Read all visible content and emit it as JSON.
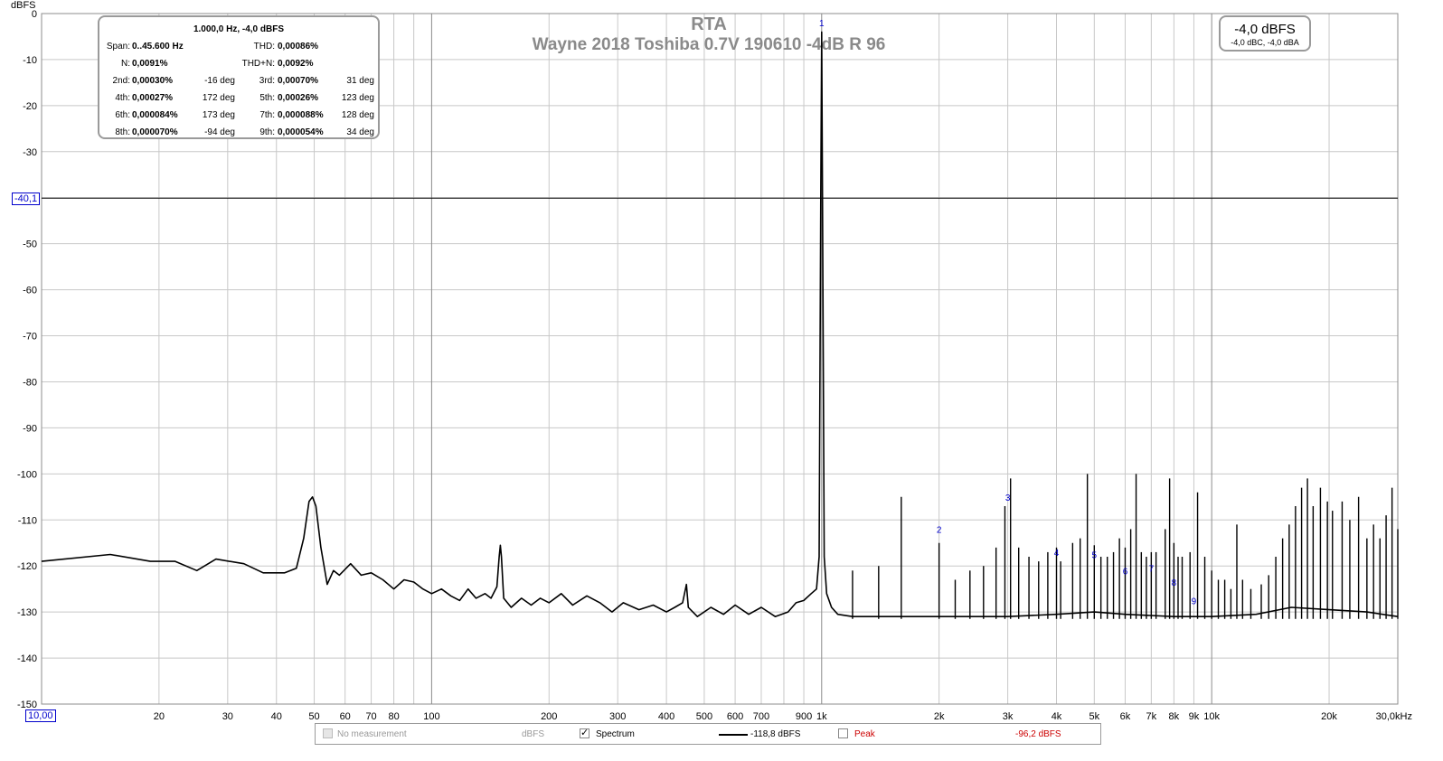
{
  "chart_data": {
    "type": "line",
    "title": "RTA",
    "subtitle": "Wayne 2018 Toshiba 0.7V 190610 -4dB R 96",
    "ylabel": "dBFS",
    "xlabel": "",
    "x_scale": "log",
    "xlim": [
      10,
      30000
    ],
    "ylim": [
      -150,
      0
    ],
    "y_ticks": [
      "0",
      "-10",
      "-20",
      "-30",
      "-40",
      "-50",
      "-60",
      "-70",
      "-80",
      "-90",
      "-100",
      "-110",
      "-120",
      "-130",
      "-140",
      "-150"
    ],
    "x_ticks": [
      {
        "v": 20,
        "label": "20"
      },
      {
        "v": 30,
        "label": "30"
      },
      {
        "v": 40,
        "label": "40"
      },
      {
        "v": 50,
        "label": "50"
      },
      {
        "v": 60,
        "label": "60"
      },
      {
        "v": 70,
        "label": "70"
      },
      {
        "v": 80,
        "label": "80"
      },
      {
        "v": 100,
        "label": "100"
      },
      {
        "v": 200,
        "label": "200"
      },
      {
        "v": 300,
        "label": "300"
      },
      {
        "v": 400,
        "label": "400"
      },
      {
        "v": 500,
        "label": "500"
      },
      {
        "v": 600,
        "label": "600"
      },
      {
        "v": 700,
        "label": "700"
      },
      {
        "v": 900,
        "label": "900"
      },
      {
        "v": 1000,
        "label": "1k"
      },
      {
        "v": 2000,
        "label": "2k"
      },
      {
        "v": 3000,
        "label": "3k"
      },
      {
        "v": 4000,
        "label": "4k"
      },
      {
        "v": 5000,
        "label": "5k"
      },
      {
        "v": 6000,
        "label": "6k"
      },
      {
        "v": 7000,
        "label": "7k"
      },
      {
        "v": 8000,
        "label": "8k"
      },
      {
        "v": 9000,
        "label": "9k"
      },
      {
        "v": 10000,
        "label": "10k"
      },
      {
        "v": 20000,
        "label": "20k"
      },
      {
        "v": 30000,
        "label": "30,0kHz"
      }
    ],
    "grid": true,
    "cursor": {
      "y": -40.1,
      "label": "-40,1"
    },
    "x_start_label": "10,00",
    "series": [
      {
        "name": "Spectrum",
        "color": "#000000",
        "points": [
          [
            10,
            -119
          ],
          [
            15,
            -117.5
          ],
          [
            19,
            -119
          ],
          [
            22,
            -119
          ],
          [
            25,
            -121
          ],
          [
            28,
            -118.5
          ],
          [
            33,
            -119.5
          ],
          [
            37,
            -121.5
          ],
          [
            42,
            -121.5
          ],
          [
            45,
            -120.5
          ],
          [
            47,
            -114
          ],
          [
            48.5,
            -106
          ],
          [
            49.5,
            -105
          ],
          [
            50.5,
            -107
          ],
          [
            52,
            -116
          ],
          [
            54,
            -124
          ],
          [
            56,
            -121
          ],
          [
            58,
            -122
          ],
          [
            62,
            -119.5
          ],
          [
            66,
            -122
          ],
          [
            70,
            -121.5
          ],
          [
            75,
            -123
          ],
          [
            80,
            -125
          ],
          [
            85,
            -123
          ],
          [
            90,
            -123.5
          ],
          [
            95,
            -125
          ],
          [
            100,
            -126
          ],
          [
            106,
            -125
          ],
          [
            112,
            -126.5
          ],
          [
            118,
            -127.5
          ],
          [
            124,
            -125
          ],
          [
            130,
            -127
          ],
          [
            137,
            -126
          ],
          [
            142,
            -127
          ],
          [
            147,
            -124.5
          ],
          [
            149,
            -118
          ],
          [
            150,
            -115.5
          ],
          [
            151,
            -118
          ],
          [
            153,
            -127
          ],
          [
            160,
            -129
          ],
          [
            170,
            -127
          ],
          [
            180,
            -128.5
          ],
          [
            190,
            -127
          ],
          [
            200,
            -128
          ],
          [
            215,
            -126
          ],
          [
            230,
            -128.5
          ],
          [
            250,
            -126.5
          ],
          [
            270,
            -128
          ],
          [
            290,
            -130
          ],
          [
            310,
            -128
          ],
          [
            340,
            -129.5
          ],
          [
            370,
            -128.5
          ],
          [
            400,
            -130
          ],
          [
            420,
            -129
          ],
          [
            440,
            -128
          ],
          [
            450,
            -124
          ],
          [
            455,
            -129
          ],
          [
            480,
            -131
          ],
          [
            520,
            -129
          ],
          [
            560,
            -130.5
          ],
          [
            600,
            -128.5
          ],
          [
            650,
            -130.5
          ],
          [
            700,
            -129
          ],
          [
            760,
            -131
          ],
          [
            820,
            -130
          ],
          [
            860,
            -128
          ],
          [
            900,
            -127.5
          ],
          [
            940,
            -126
          ],
          [
            970,
            -125
          ],
          [
            985,
            -118
          ],
          [
            995,
            -40
          ],
          [
            1000,
            -4
          ],
          [
            1005,
            -40
          ],
          [
            1015,
            -118
          ],
          [
            1030,
            -126
          ],
          [
            1060,
            -129
          ],
          [
            1100,
            -130.5
          ],
          [
            1200,
            -131
          ],
          [
            1500,
            -131
          ],
          [
            2000,
            -131
          ],
          [
            3000,
            -131
          ],
          [
            4000,
            -130.5
          ],
          [
            5000,
            -130
          ],
          [
            6000,
            -130.5
          ],
          [
            8000,
            -131
          ],
          [
            10000,
            -131
          ],
          [
            13000,
            -130.5
          ],
          [
            16000,
            -129
          ],
          [
            20000,
            -129.5
          ],
          [
            25000,
            -130
          ],
          [
            30000,
            -131
          ]
        ]
      }
    ],
    "spikes_hz_db": [
      [
        1200,
        -121
      ],
      [
        1400,
        -120
      ],
      [
        1600,
        -105
      ],
      [
        2000,
        -115
      ],
      [
        2200,
        -123
      ],
      [
        2400,
        -121
      ],
      [
        2600,
        -120
      ],
      [
        2800,
        -116
      ],
      [
        2950,
        -107
      ],
      [
        3050,
        -101
      ],
      [
        3200,
        -116
      ],
      [
        3400,
        -118
      ],
      [
        3600,
        -119
      ],
      [
        3800,
        -117
      ],
      [
        4000,
        -116
      ],
      [
        4100,
        -119
      ],
      [
        4400,
        -115
      ],
      [
        4600,
        -114
      ],
      [
        4800,
        -100
      ],
      [
        5000,
        -115.5
      ],
      [
        5200,
        -118
      ],
      [
        5400,
        -118
      ],
      [
        5600,
        -117
      ],
      [
        5800,
        -114
      ],
      [
        6000,
        -116
      ],
      [
        6200,
        -112
      ],
      [
        6400,
        -100
      ],
      [
        6600,
        -117
      ],
      [
        6800,
        -118
      ],
      [
        7000,
        -117
      ],
      [
        7200,
        -117
      ],
      [
        7600,
        -112
      ],
      [
        7800,
        -101
      ],
      [
        8000,
        -115
      ],
      [
        8200,
        -118
      ],
      [
        8400,
        -118
      ],
      [
        8800,
        -117
      ],
      [
        9200,
        -104
      ],
      [
        9600,
        -118
      ],
      [
        10000,
        -121
      ],
      [
        10400,
        -123
      ],
      [
        10800,
        -123
      ],
      [
        11200,
        -125
      ],
      [
        11600,
        -111
      ],
      [
        12000,
        -123
      ],
      [
        12600,
        -125
      ],
      [
        13400,
        -124
      ],
      [
        14000,
        -122
      ],
      [
        14600,
        -118
      ],
      [
        15200,
        -114
      ],
      [
        15800,
        -111
      ],
      [
        16400,
        -107
      ],
      [
        17000,
        -103
      ],
      [
        17600,
        -101
      ],
      [
        18200,
        -107
      ],
      [
        19000,
        -103
      ],
      [
        19800,
        -106
      ],
      [
        20400,
        -108
      ],
      [
        21600,
        -106
      ],
      [
        22600,
        -110
      ],
      [
        23800,
        -105
      ],
      [
        25000,
        -114
      ],
      [
        26000,
        -111
      ],
      [
        27000,
        -114
      ],
      [
        28000,
        -109
      ],
      [
        29000,
        -103
      ],
      [
        30000,
        -112
      ]
    ],
    "harmonic_markers": [
      {
        "label": "1",
        "hz": 1000,
        "db": -2
      },
      {
        "label": "2",
        "hz": 2000,
        "db": -112
      },
      {
        "label": "3",
        "hz": 3000,
        "db": -105
      },
      {
        "label": "4",
        "hz": 4000,
        "db": -117
      },
      {
        "label": "5",
        "hz": 5000,
        "db": -117.5
      },
      {
        "label": "6",
        "hz": 6000,
        "db": -121
      },
      {
        "label": "7",
        "hz": 7000,
        "db": -120.5
      },
      {
        "label": "8",
        "hz": 8000,
        "db": -123.5
      },
      {
        "label": "9",
        "hz": 9000,
        "db": -127.5
      }
    ]
  },
  "info_box": {
    "title": "1.000,0 Hz, -4,0 dBFS",
    "span_label": "Span:",
    "span_value": "0..45.600 Hz",
    "thd_label": "THD:",
    "thd_value": "0,00086%",
    "n_label": "N:",
    "n_value": "0,0091%",
    "thdn_label": "THD+N:",
    "thdn_value": "0,0092%",
    "harmonics": [
      {
        "a_label": "2nd:",
        "a_value": "0,00030%",
        "a_deg": "-16 deg",
        "b_label": "3rd:",
        "b_value": "0,00070%",
        "b_deg": "31 deg"
      },
      {
        "a_label": "4th:",
        "a_value": "0,00027%",
        "a_deg": "172 deg",
        "b_label": "5th:",
        "b_value": "0,00026%",
        "b_deg": "123 deg"
      },
      {
        "a_label": "6th:",
        "a_value": "0,000084%",
        "a_deg": "173 deg",
        "b_label": "7th:",
        "b_value": "0,000088%",
        "b_deg": "128 deg"
      },
      {
        "a_label": "8th:",
        "a_value": "0,000070%",
        "a_deg": "-94 deg",
        "b_label": "9th:",
        "b_value": "0,000054%",
        "b_deg": "34 deg"
      }
    ]
  },
  "level_box": {
    "main": "-4,0 dBFS",
    "sub": "-4,0 dBC, -4,0 dBA"
  },
  "legend": {
    "no_measurement": "No measurement",
    "no_measurement_unit": "dBFS",
    "spectrum_label": "Spectrum",
    "spectrum_value": "-118,8 dBFS",
    "peak_label": "Peak",
    "peak_value": "-96,2 dBFS",
    "peak_color": "#cc0000"
  }
}
